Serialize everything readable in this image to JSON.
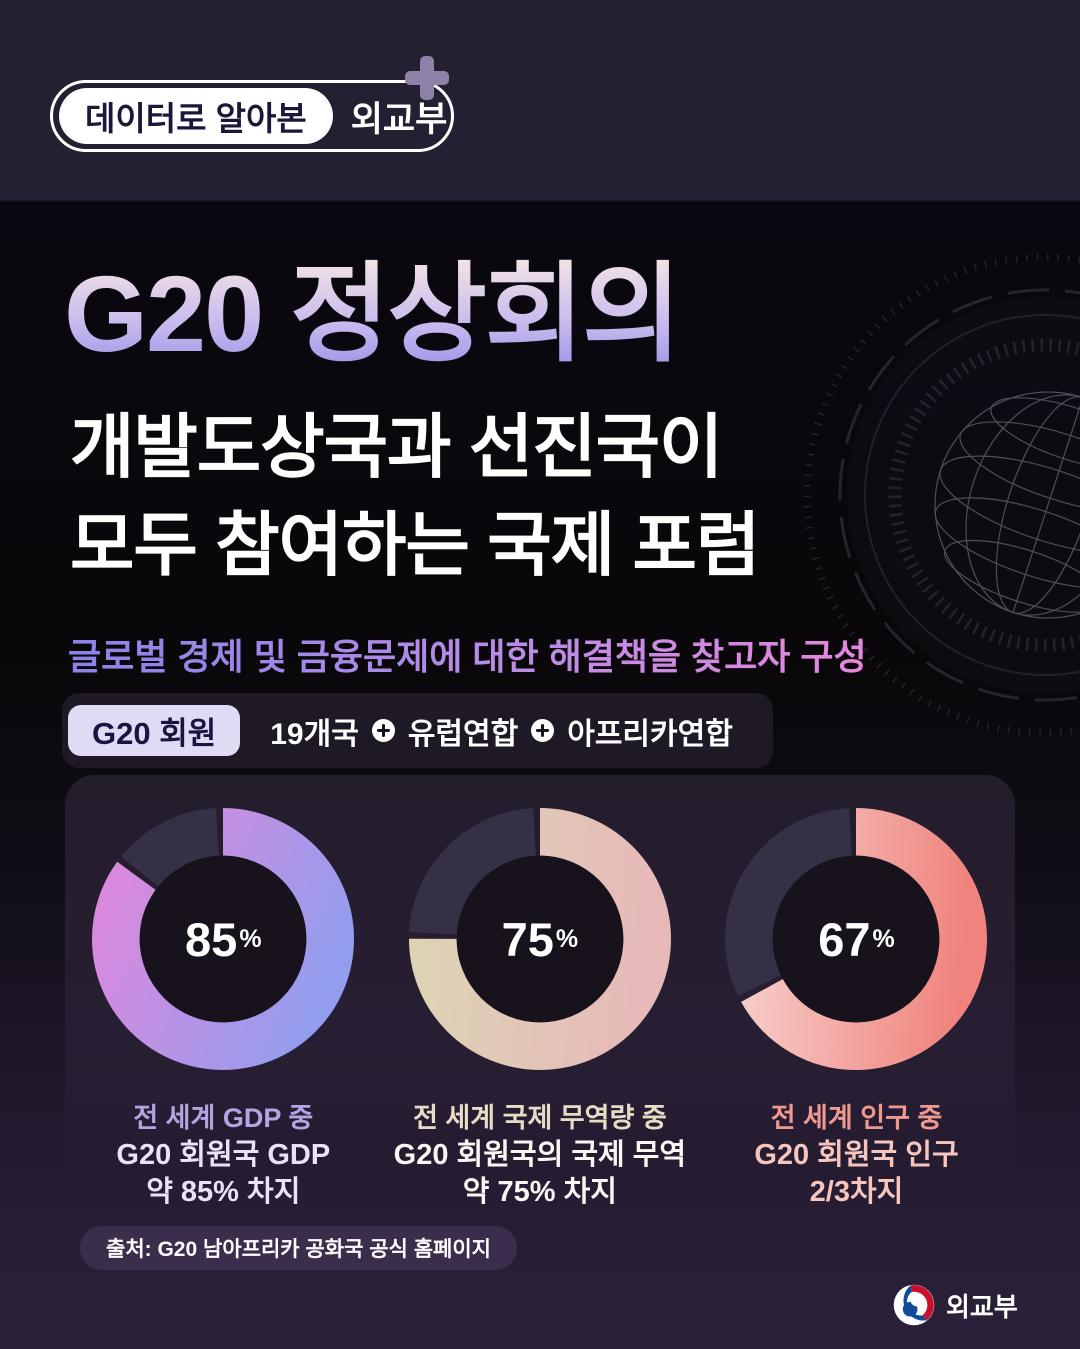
{
  "header": {
    "badge_label": "데이터로 알아본",
    "badge_org": "외교부"
  },
  "hero": {
    "title": "G20 정상회의",
    "subtitle_line1": "개발도상국과 선진국이",
    "subtitle_line2": "모두 참여하는 국제 포럼",
    "description": "글로벌 경제 및 금융문제에 대한 해결책을 찾고자 구성"
  },
  "members": {
    "badge_label": "G20 회원",
    "items": [
      "19개국",
      "유럽연합",
      "아프리카연합"
    ]
  },
  "chart_data": {
    "type": "donut",
    "unit": "%",
    "charts": [
      {
        "value": 85,
        "center_label": "85",
        "captions": [
          "전 세계 GDP 중",
          "G20 회원국 GDP",
          "약 85% 차지"
        ],
        "gradient_start": "#d88ade",
        "gradient_end": "#939dee",
        "caption_accent": "#b2a5e2",
        "remainder_color": "#353046"
      },
      {
        "value": 75,
        "center_label": "75",
        "captions": [
          "전 세계 국제 무역량 중",
          "G20 회원국의 국제 무역",
          "약 75% 차지"
        ],
        "gradient_start": "#ded2b5",
        "gradient_end": "#e7b9b9",
        "caption_accent": "#e8dcc6",
        "remainder_color": "#353046"
      },
      {
        "value": 67,
        "center_label": "67",
        "captions": [
          "전 세계 인구 중",
          "G20 회원국 인구",
          "2/3차지"
        ],
        "gradient_start": "#f6ccc8",
        "gradient_end": "#f0837d",
        "caption_accent": "#ee9a90",
        "remainder_color": "#353046"
      }
    ]
  },
  "source": {
    "text": "출처: G20 남아프리카 공화국 공식 홈페이지"
  },
  "footer": {
    "org": "외교부"
  },
  "colors": {
    "page_top_strip": "#232031",
    "page_bottom": "#2b2138",
    "hero_background": "#090709",
    "card_background": "#241d2c",
    "donut_remainder": "#353046",
    "donut_hole": "#18121d",
    "title_gradient": [
      "#f6e7e4",
      "#cbbcee",
      "#958ce8"
    ],
    "description_gradient": [
      "#8a83e8",
      "#e687dd"
    ],
    "members_badge_bg": "#e0daf4",
    "members_badge_text": "#1a1440",
    "source_pill_bg": "#3e3150",
    "emblem_red": "#c8102e",
    "emblem_blue": "#0f4c9a"
  }
}
